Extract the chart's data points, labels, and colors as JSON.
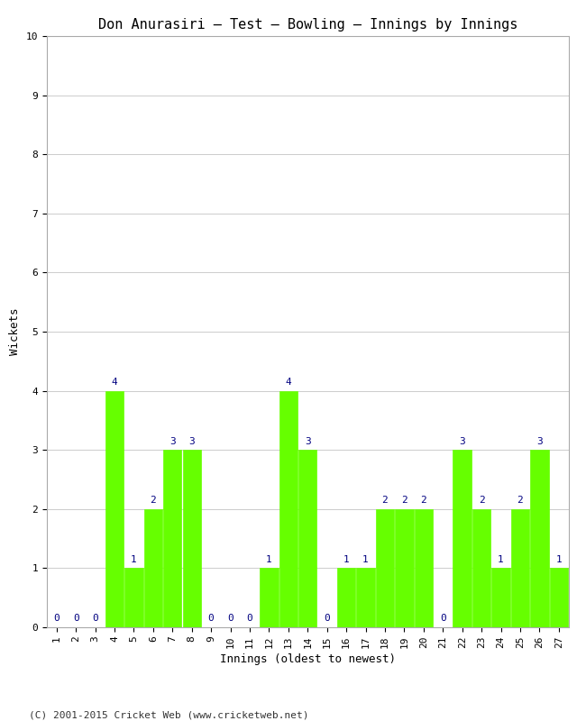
{
  "title": "Don Anurasiri – Test – Bowling – Innings by Innings",
  "xlabel": "Innings (oldest to newest)",
  "ylabel": "Wickets",
  "innings": [
    1,
    2,
    3,
    4,
    5,
    6,
    7,
    8,
    9,
    10,
    11,
    12,
    13,
    14,
    15,
    16,
    17,
    18,
    19,
    20,
    21,
    22,
    23,
    24,
    25,
    26,
    27
  ],
  "wickets": [
    0,
    0,
    0,
    4,
    1,
    2,
    3,
    3,
    0,
    0,
    0,
    1,
    4,
    3,
    0,
    1,
    1,
    2,
    2,
    2,
    0,
    3,
    2,
    1,
    2,
    3,
    1
  ],
  "bar_color": "#66ff00",
  "bar_edge_color": "#66ff00",
  "label_color": "#000080",
  "background_color": "#ffffff",
  "ylim": [
    0,
    10
  ],
  "yticks": [
    0,
    1,
    2,
    3,
    4,
    5,
    6,
    7,
    8,
    9,
    10
  ],
  "copyright": "(C) 2001-2015 Cricket Web (www.cricketweb.net)",
  "title_fontsize": 11,
  "label_fontsize": 9,
  "tick_fontsize": 8,
  "annotation_fontsize": 8,
  "bar_width": 0.95
}
